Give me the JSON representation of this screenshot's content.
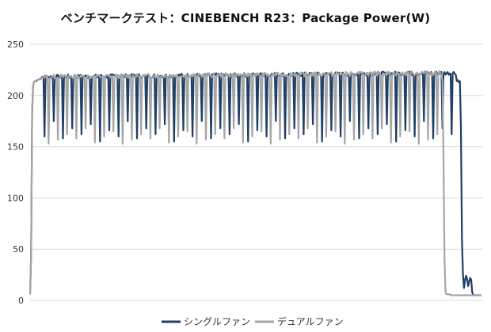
{
  "chart_data": {
    "type": "line",
    "title": "ベンチマークテスト：CINEBENCH R23：Package Power(W)",
    "xlabel": "",
    "ylabel": "",
    "ylim": [
      0,
      250
    ],
    "yticks": [
      0,
      50,
      100,
      150,
      200,
      250
    ],
    "grid": true,
    "legend_position": "bottom",
    "series": [
      {
        "name": "シングルファン",
        "color": "#1f3f66"
      },
      {
        "name": "デュアルファン",
        "color": "#a6a6a6"
      }
    ]
  }
}
